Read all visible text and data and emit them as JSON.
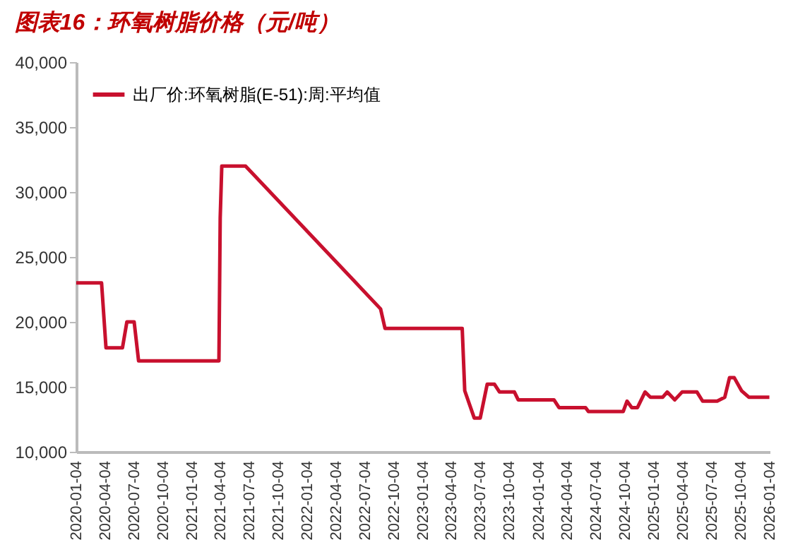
{
  "chart_data": {
    "type": "line",
    "title": "图表16：环氧树脂价格（元/吨）",
    "x": [
      "2020-01-04",
      "2020-03-24",
      "2020-04-07",
      "2020-05-29",
      "2020-06-12",
      "2020-07-05",
      "2020-07-19",
      "2021-03-30",
      "2021-04-03",
      "2021-04-08",
      "2021-06-22",
      "2022-08-23",
      "2022-09-06",
      "2023-05-08",
      "2023-05-16",
      "2023-06-15",
      "2023-07-04",
      "2023-07-26",
      "2023-08-18",
      "2023-09-03",
      "2023-10-20",
      "2023-11-01",
      "2024-02-22",
      "2024-03-09",
      "2024-06-01",
      "2024-06-10",
      "2024-09-28",
      "2024-10-10",
      "2024-10-25",
      "2024-11-12",
      "2024-12-06",
      "2024-12-23",
      "2025-01-31",
      "2025-02-14",
      "2025-03-10",
      "2025-04-02",
      "2025-05-19",
      "2025-06-06",
      "2025-07-22",
      "2025-08-15",
      "2025-08-30",
      "2025-09-14",
      "2025-10-07",
      "2025-10-30",
      "2026-01-03"
    ],
    "series": [
      {
        "name": "出厂价:环氧树脂(E-51):周:平均值",
        "color": "#c8102e",
        "values": [
          23000,
          23000,
          18000,
          18000,
          20000,
          20000,
          17000,
          17000,
          28000,
          32000,
          32000,
          21000,
          19500,
          19500,
          14700,
          12600,
          12600,
          15200,
          15200,
          14600,
          14600,
          14000,
          14000,
          13400,
          13400,
          13100,
          13100,
          13900,
          13400,
          13400,
          14600,
          14200,
          14200,
          14600,
          14000,
          14600,
          14600,
          13900,
          13900,
          14200,
          15700,
          15700,
          14700,
          14200,
          14200
        ]
      }
    ],
    "xlim": [
      "2020-01-04",
      "2026-01-04"
    ],
    "xticks": [
      "2020-01-04",
      "2020-04-04",
      "2020-07-04",
      "2020-10-04",
      "2021-01-04",
      "2021-04-04",
      "2021-07-04",
      "2021-10-04",
      "2022-01-04",
      "2022-04-04",
      "2022-07-04",
      "2022-10-04",
      "2023-01-04",
      "2023-04-04",
      "2023-07-04",
      "2023-10-04",
      "2024-01-04",
      "2024-04-04",
      "2024-07-04",
      "2024-10-04",
      "2025-01-04",
      "2025-04-04",
      "2025-07-04",
      "2025-10-04",
      "2026-01-04"
    ],
    "ylim": [
      10000,
      40000
    ],
    "yticks": [
      {
        "value": 10000,
        "label": "10,000"
      },
      {
        "value": 15000,
        "label": "15,000"
      },
      {
        "value": 20000,
        "label": "20,000"
      },
      {
        "value": 25000,
        "label": "25,000"
      },
      {
        "value": 30000,
        "label": "30,000"
      },
      {
        "value": 35000,
        "label": "35,000"
      },
      {
        "value": 40000,
        "label": "40,000"
      }
    ],
    "grid": false,
    "legend": "top left",
    "marker": "none",
    "line_style": "solid"
  }
}
